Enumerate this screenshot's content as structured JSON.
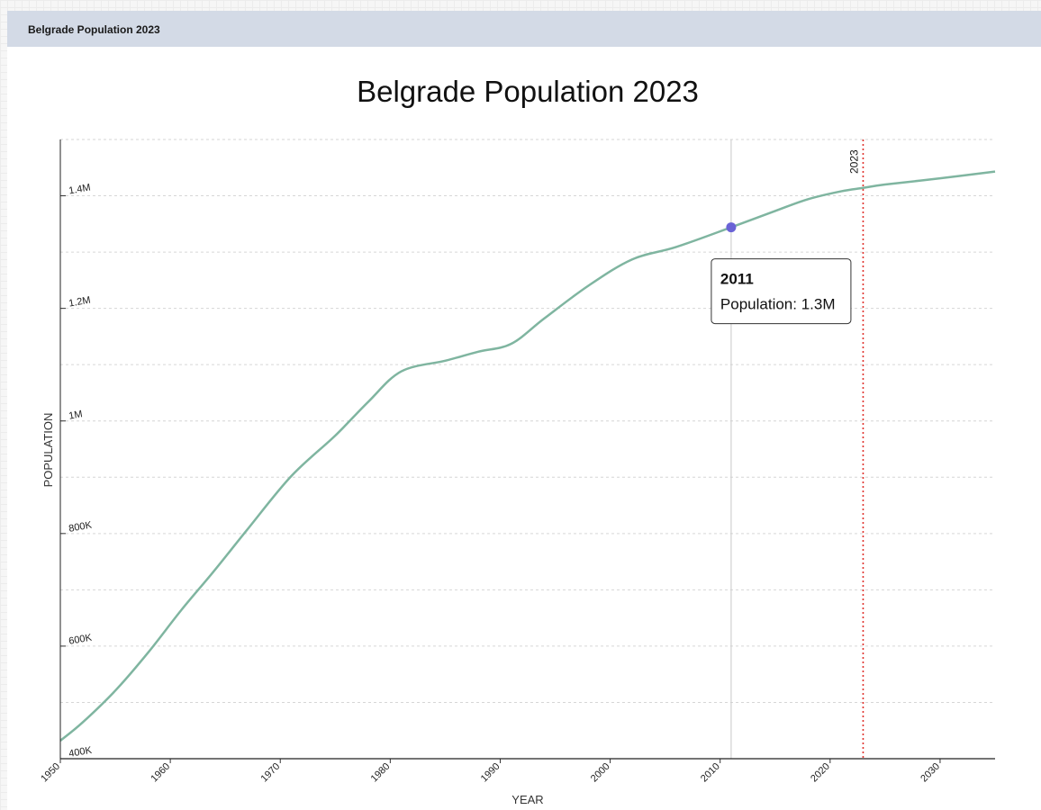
{
  "header": {
    "title": "Belgrade Population 2023"
  },
  "chart_data": {
    "type": "line",
    "title": "Belgrade Population 2023",
    "xlabel": "YEAR",
    "ylabel": "POPULATION",
    "xlim": [
      1950,
      2035
    ],
    "ylim": [
      400000,
      1500000
    ],
    "x_ticks": [
      1950,
      1960,
      1970,
      1980,
      1990,
      2000,
      2010,
      2020,
      2030
    ],
    "y_ticks": [
      {
        "value": 400000,
        "label": "400K"
      },
      {
        "value": 600000,
        "label": "600K"
      },
      {
        "value": 800000,
        "label": "800K"
      },
      {
        "value": 1000000,
        "label": "1M"
      },
      {
        "value": 1200000,
        "label": "1.2M"
      },
      {
        "value": 1400000,
        "label": "1.4M"
      }
    ],
    "y_grid_step": 100000,
    "grid": "horizontal-dashed",
    "line_color": "#7fb5a0",
    "series": [
      {
        "x": [
          1950,
          1952,
          1955,
          1958,
          1961,
          1964,
          1967,
          1971,
          1975,
          1978,
          1981,
          1985,
          1988,
          1991,
          1994,
          1998,
          2002,
          2006,
          2011,
          2015,
          2018,
          2021,
          2023,
          2025,
          2030,
          2035
        ],
        "y": [
          432000,
          464000,
          521000,
          589000,
          664000,
          734000,
          807000,
          902000,
          974000,
          1034000,
          1088000,
          1107000,
          1123000,
          1137000,
          1182000,
          1240000,
          1287000,
          1309000,
          1344000,
          1373000,
          1394000,
          1408000,
          1414000,
          1420000,
          1431000,
          1443000
        ]
      }
    ],
    "reference_line": {
      "x": 2023,
      "label": "2023",
      "color": "#e0332e"
    },
    "hover": {
      "x": 2011,
      "y": 1344000,
      "point_color": "#6a63d6",
      "tooltip_title": "2011",
      "tooltip_text": "Population: 1.3M"
    }
  }
}
